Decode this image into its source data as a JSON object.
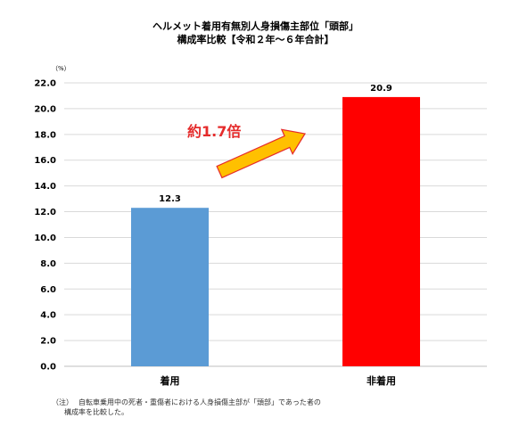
{
  "chart_data": {
    "type": "bar",
    "title": "ヘルメット着用有無別人身損傷主部位「頭部」",
    "subtitle": "構成率比較【令和２年～６年合計】",
    "unit_label": "（%）",
    "categories": [
      "着用",
      "非着用"
    ],
    "values": [
      12.3,
      20.9
    ],
    "value_labels": [
      "12.3",
      "20.9"
    ],
    "bar_colors": [
      "#5b9bd5",
      "#ff0000"
    ],
    "ylim": [
      0,
      22
    ],
    "yticks": [
      "0.0",
      "2.0",
      "4.0",
      "6.0",
      "8.0",
      "10.0",
      "12.0",
      "14.0",
      "16.0",
      "18.0",
      "20.0",
      "22.0"
    ],
    "grid": true,
    "annotation": {
      "text": "約1.7倍",
      "color": "#e52b2b",
      "arrow_fill": "#ffc000",
      "arrow_stroke": "#e52b2b"
    }
  },
  "note": {
    "tag": "（注）",
    "line1": "自転車乗用中の死者・重傷者における人身損傷主部が「頭部」であった者の",
    "line2": "構成率を比較した。"
  }
}
